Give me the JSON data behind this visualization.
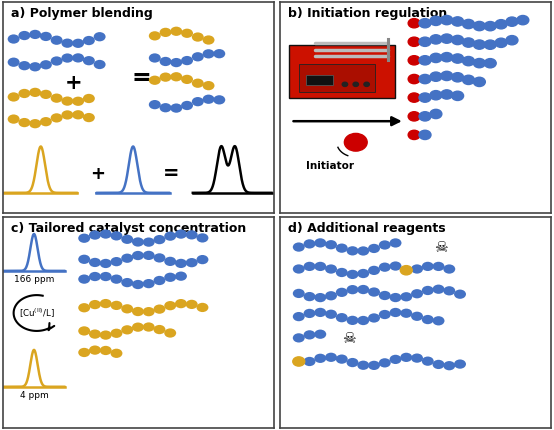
{
  "blue": "#4472C4",
  "gold": "#DAA520",
  "red": "#CC0000",
  "bg": "#FFFFFF",
  "title_fontsize": 9.0,
  "fig_width": 5.54,
  "fig_height": 4.3,
  "panel_titles": [
    "a) Polymer blending",
    "b) Initiation regulation",
    "c) Tailored catalyst concentration",
    "d) Additional reagents"
  ],
  "panel_border": "#444444"
}
